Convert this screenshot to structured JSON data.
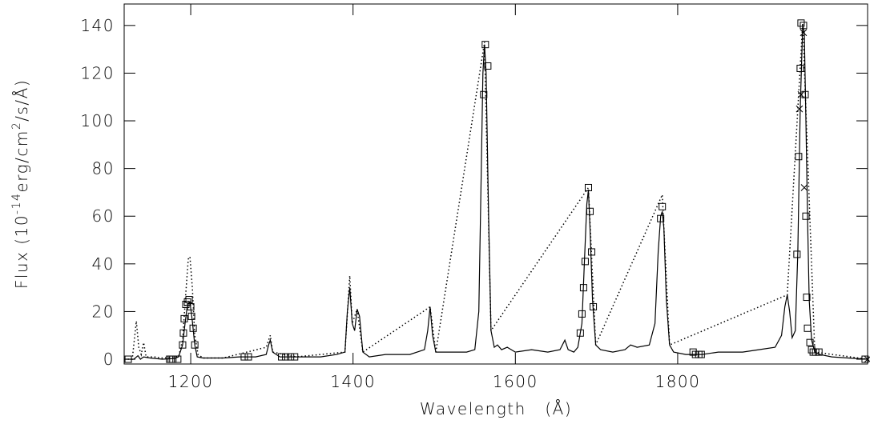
{
  "chart_data": {
    "type": "spectrum",
    "ylabel": [
      "Flux (10",
      "-14",
      "erg/cm",
      "2",
      "/s/Å)"
    ],
    "xlabel": "Wavelength   (Å)",
    "xlim": [
      1118,
      2034
    ],
    "ylim": [
      -2,
      149
    ],
    "xticks": [
      1200,
      1400,
      1600,
      1800
    ],
    "yticks": [
      0,
      20,
      40,
      60,
      80,
      100,
      120,
      140
    ],
    "color": "#000000",
    "series": [
      {
        "style": "solid",
        "x": [
          1118,
          1130,
          1135,
          1138,
          1142,
          1150,
          1165,
          1180,
          1185,
          1190,
          1193,
          1196,
          1199,
          1202,
          1205,
          1208,
          1215,
          1240,
          1260,
          1280,
          1293,
          1296,
          1298,
          1301,
          1310,
          1330,
          1360,
          1380,
          1390,
          1393,
          1396,
          1399,
          1402,
          1405,
          1408,
          1412,
          1420,
          1440,
          1470,
          1488,
          1492,
          1495,
          1498,
          1502,
          1520,
          1540,
          1550,
          1555,
          1558,
          1560,
          1562,
          1564,
          1567,
          1570,
          1574,
          1578,
          1583,
          1590,
          1600,
          1620,
          1640,
          1655,
          1661,
          1665,
          1672,
          1677,
          1682,
          1685,
          1688,
          1690,
          1692,
          1695,
          1699,
          1705,
          1720,
          1735,
          1742,
          1750,
          1765,
          1772,
          1776,
          1779,
          1781,
          1783,
          1786,
          1790,
          1795,
          1810,
          1830,
          1850,
          1880,
          1900,
          1920,
          1928,
          1932,
          1935,
          1938,
          1941,
          1945,
          1948,
          1951,
          1954,
          1956,
          1958,
          1960,
          1962,
          1965,
          1969,
          1975,
          1990,
          2010,
          2034
        ],
        "values": [
          0,
          0,
          1.5,
          0,
          1,
          0.5,
          0,
          0.3,
          1,
          6,
          15,
          23,
          24,
          16,
          6,
          1,
          0.5,
          0.5,
          1,
          1,
          2,
          6,
          8,
          3,
          1,
          1,
          1,
          2,
          3,
          20,
          30,
          15,
          12,
          21,
          18,
          3,
          1,
          2,
          2,
          4,
          12,
          22,
          10,
          3,
          3,
          3,
          4,
          20,
          80,
          120,
          132,
          120,
          60,
          12,
          5,
          6,
          4,
          5,
          3,
          4,
          3,
          4,
          8,
          4,
          3,
          5,
          15,
          40,
          65,
          71,
          55,
          25,
          6,
          4,
          3,
          4,
          6,
          5,
          6,
          15,
          45,
          60,
          62,
          55,
          25,
          6,
          3,
          2,
          2,
          3,
          3,
          4,
          5,
          10,
          22,
          27,
          20,
          9,
          12,
          45,
          105,
          140,
          137,
          100,
          60,
          25,
          8,
          3,
          2,
          1,
          0.5,
          0
        ]
      },
      {
        "style": "dotted",
        "x": [
          1118,
          1128,
          1133,
          1136,
          1139,
          1142,
          1145,
          1155,
          1165,
          1185,
          1190,
          1194,
          1197,
          1199,
          1202,
          1205,
          1209,
          1215,
          1240,
          1293,
          1298,
          1301,
          1330,
          1390,
          1396,
          1399,
          1405,
          1412,
          1495,
          1502,
          1562,
          1570,
          1690,
          1699,
          1781,
          1790,
          1935,
          1954,
          1969,
          2034
        ],
        "values": [
          0,
          0,
          16,
          5,
          2,
          7,
          1,
          1,
          0.5,
          1,
          8,
          28,
          42,
          43,
          30,
          10,
          2,
          0.5,
          0.5,
          5,
          10,
          3,
          1,
          3,
          35,
          15,
          21,
          3,
          22,
          3,
          133,
          12,
          72,
          6,
          69,
          6,
          27,
          141,
          3,
          0
        ]
      },
      {
        "style": "square",
        "x": [
          1123,
          1174,
          1176,
          1178,
          1184,
          1190,
          1191,
          1192,
          1194,
          1196,
          1198,
          1200,
          1201,
          1203,
          1205,
          1266,
          1271,
          1312,
          1317,
          1323,
          1328,
          1561,
          1563,
          1566,
          1680,
          1682,
          1684,
          1686,
          1690,
          1692,
          1694,
          1696,
          1779,
          1781,
          1819,
          1822,
          1826,
          1829,
          1947,
          1949,
          1951,
          1952,
          1955,
          1957,
          1958,
          1959,
          1960,
          1963,
          1965,
          1967,
          1970,
          1974,
          2031
        ],
        "values": [
          0,
          0,
          0,
          0,
          0,
          6,
          11,
          17,
          23,
          24,
          25,
          22,
          18,
          13,
          6,
          1,
          1,
          1,
          1,
          1,
          1,
          111,
          132,
          123,
          11,
          19,
          30,
          41,
          72,
          62,
          45,
          22,
          59,
          64,
          3,
          2,
          2,
          2,
          44,
          85,
          122,
          141,
          140,
          111,
          60,
          26,
          13,
          7,
          4,
          3,
          3,
          3,
          0
        ]
      },
      {
        "style": "cross",
        "x": [
          1950,
          1952,
          1955,
          1956,
          2034
        ],
        "values": [
          105,
          111,
          137,
          72,
          0
        ]
      }
    ]
  }
}
